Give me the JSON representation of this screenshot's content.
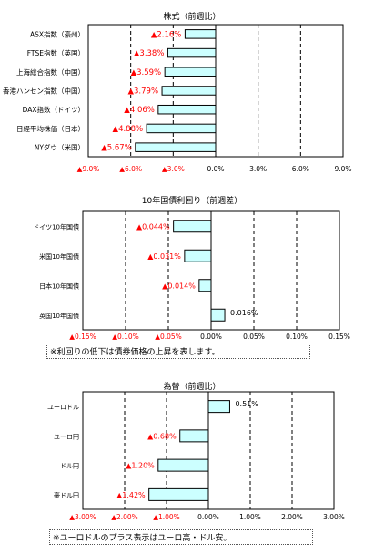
{
  "chart_data": [
    {
      "type": "bar",
      "orientation": "horizontal",
      "title": "株式（前週比）",
      "categories": [
        "ASX指数（豪州）",
        "FTSE指数（英国）",
        "上海総合指数（中国）",
        "香港ハンセン指数（中国）",
        "DAX指数（ドイツ）",
        "日経平均株価（日本）",
        "NYダウ（米国）"
      ],
      "values": [
        -2.16,
        -3.38,
        -3.59,
        -3.79,
        -4.06,
        -4.88,
        -5.67
      ],
      "value_labels": [
        "▲2.16%",
        "▲3.38%",
        "▲3.59%",
        "▲3.79%",
        "▲4.06%",
        "▲4.88%",
        "▲5.67%"
      ],
      "xlim": [
        -9,
        9
      ],
      "xticks": [
        -9,
        -6,
        -3,
        0,
        3,
        6,
        9
      ],
      "xtick_labels": [
        "▲9.0%",
        "▲6.0%",
        "▲3.0%",
        "0.0%",
        "3.0%",
        "6.0%",
        "9.0%"
      ],
      "bar_color": "#ccffff",
      "negative_label_color": "#ff0000",
      "grid": "vertical dashed"
    },
    {
      "type": "bar",
      "orientation": "horizontal",
      "title": "10年国債利回り（前週差）",
      "categories": [
        "ドイツ10年国債",
        "米国10年国債",
        "日本10年国債",
        "英国10年国債"
      ],
      "values": [
        -0.044,
        -0.031,
        -0.014,
        0.016
      ],
      "value_labels": [
        "▲0.044%",
        "▲0.031%",
        "▲0.014%",
        "0.016%"
      ],
      "xlim": [
        -0.15,
        0.15
      ],
      "xticks": [
        -0.15,
        -0.1,
        -0.05,
        0,
        0.05,
        0.1,
        0.15
      ],
      "xtick_labels": [
        "▲0.15%",
        "▲0.10%",
        "▲0.05%",
        "0.00%",
        "0.05%",
        "0.10%",
        "0.15%"
      ],
      "bar_color": "#ccffff",
      "negative_label_color": "#ff0000",
      "grid": "vertical dashed",
      "note": "※利回りの低下は債券価格の上昇を表します。"
    },
    {
      "type": "bar",
      "orientation": "horizontal",
      "title": "為替（前週比）",
      "categories": [
        "ユーロドル",
        "ユーロ円",
        "ドル円",
        "豪ドル円"
      ],
      "values": [
        0.51,
        -0.68,
        -1.2,
        -1.42
      ],
      "value_labels": [
        "0.51%",
        "▲0.68%",
        "▲1.20%",
        "▲1.42%"
      ],
      "xlim": [
        -3,
        3
      ],
      "xticks": [
        -3,
        -2,
        -1,
        0,
        1,
        2,
        3
      ],
      "xtick_labels": [
        "▲3.00%",
        "▲2.00%",
        "▲1.00%",
        "0.00%",
        "1.00%",
        "2.00%",
        "3.00%"
      ],
      "bar_color": "#ccffff",
      "negative_label_color": "#ff0000",
      "grid": "vertical dashed",
      "note": "※ユーロドルのプラス表示はユーロ高・ドル安。"
    }
  ]
}
